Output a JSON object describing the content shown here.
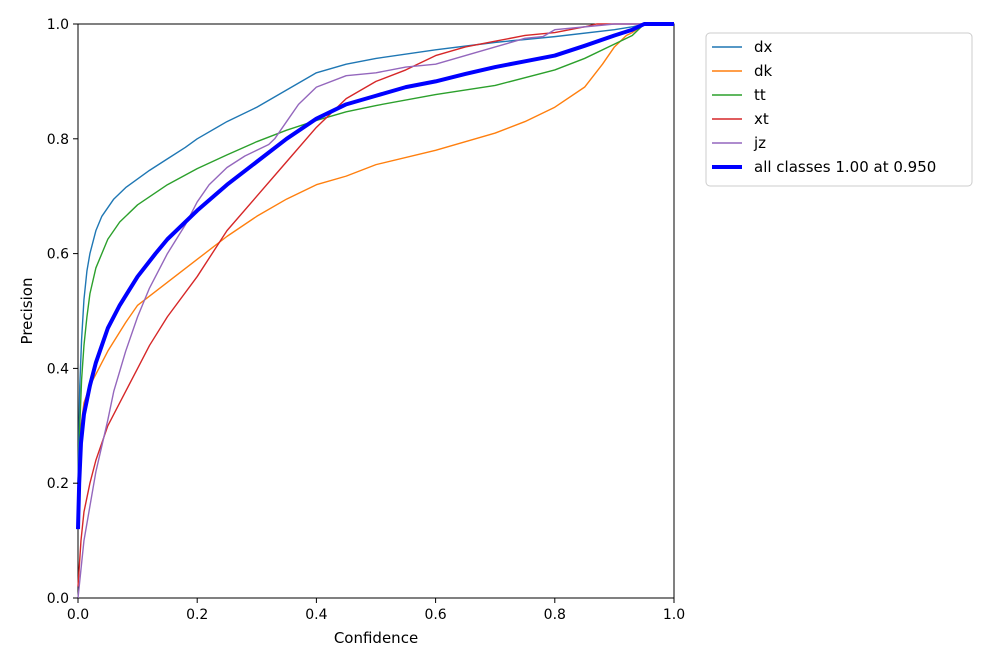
{
  "chart_data": {
    "type": "line",
    "title": "",
    "xlabel": "Confidence",
    "ylabel": "Precision",
    "xlim": [
      0,
      1
    ],
    "ylim": [
      0,
      1
    ],
    "xticks": [
      "0.0",
      "0.2",
      "0.4",
      "0.6",
      "0.8",
      "1.0"
    ],
    "yticks": [
      "0.0",
      "0.2",
      "0.4",
      "0.6",
      "0.8",
      "1.0"
    ],
    "grid": false,
    "legend_position": "outside-top-right",
    "series": [
      {
        "name": "dx",
        "color": "#1f77b4",
        "width": "thin",
        "x": [
          0.0,
          0.003,
          0.006,
          0.01,
          0.015,
          0.02,
          0.03,
          0.04,
          0.06,
          0.08,
          0.1,
          0.12,
          0.15,
          0.18,
          0.2,
          0.25,
          0.3,
          0.35,
          0.4,
          0.45,
          0.5,
          0.6,
          0.7,
          0.8,
          0.9,
          0.93,
          0.95,
          1.0
        ],
        "y": [
          0.2,
          0.37,
          0.45,
          0.52,
          0.57,
          0.6,
          0.64,
          0.665,
          0.695,
          0.715,
          0.73,
          0.745,
          0.765,
          0.785,
          0.8,
          0.83,
          0.855,
          0.885,
          0.915,
          0.93,
          0.94,
          0.955,
          0.968,
          0.978,
          0.99,
          0.995,
          1.0,
          1.0
        ]
      },
      {
        "name": "dk",
        "color": "#ff7f0e",
        "width": "thin",
        "x": [
          0.0,
          0.005,
          0.01,
          0.02,
          0.03,
          0.05,
          0.08,
          0.1,
          0.15,
          0.2,
          0.25,
          0.3,
          0.35,
          0.4,
          0.45,
          0.5,
          0.6,
          0.7,
          0.75,
          0.8,
          0.85,
          0.88,
          0.9,
          0.92,
          0.93,
          0.95,
          1.0
        ],
        "y": [
          0.15,
          0.3,
          0.34,
          0.37,
          0.39,
          0.43,
          0.48,
          0.51,
          0.55,
          0.59,
          0.63,
          0.665,
          0.695,
          0.72,
          0.735,
          0.755,
          0.78,
          0.81,
          0.83,
          0.855,
          0.89,
          0.93,
          0.96,
          0.98,
          0.985,
          1.0,
          1.0
        ]
      },
      {
        "name": "tt",
        "color": "#2ca02c",
        "width": "thin",
        "x": [
          0.0,
          0.003,
          0.006,
          0.01,
          0.015,
          0.02,
          0.03,
          0.05,
          0.07,
          0.1,
          0.15,
          0.2,
          0.25,
          0.3,
          0.35,
          0.4,
          0.45,
          0.5,
          0.6,
          0.7,
          0.8,
          0.85,
          0.9,
          0.93,
          0.95,
          1.0
        ],
        "y": [
          0.15,
          0.3,
          0.38,
          0.44,
          0.49,
          0.53,
          0.575,
          0.625,
          0.655,
          0.685,
          0.72,
          0.748,
          0.772,
          0.795,
          0.815,
          0.832,
          0.847,
          0.858,
          0.877,
          0.893,
          0.92,
          0.94,
          0.965,
          0.98,
          1.0,
          1.0
        ]
      },
      {
        "name": "xt",
        "color": "#d62728",
        "width": "thin",
        "x": [
          0.0,
          0.005,
          0.01,
          0.02,
          0.03,
          0.05,
          0.07,
          0.1,
          0.12,
          0.15,
          0.2,
          0.25,
          0.3,
          0.35,
          0.4,
          0.45,
          0.5,
          0.55,
          0.6,
          0.65,
          0.7,
          0.75,
          0.8,
          0.85,
          0.87,
          0.9,
          1.0
        ],
        "y": [
          0.02,
          0.1,
          0.15,
          0.2,
          0.24,
          0.3,
          0.34,
          0.4,
          0.44,
          0.49,
          0.56,
          0.64,
          0.7,
          0.76,
          0.82,
          0.87,
          0.9,
          0.92,
          0.945,
          0.96,
          0.97,
          0.98,
          0.985,
          0.995,
          1.0,
          1.0,
          1.0
        ]
      },
      {
        "name": "jz",
        "color": "#9467bd",
        "width": "thin",
        "x": [
          0.0,
          0.005,
          0.01,
          0.02,
          0.03,
          0.05,
          0.06,
          0.08,
          0.1,
          0.12,
          0.15,
          0.18,
          0.2,
          0.22,
          0.25,
          0.28,
          0.3,
          0.32,
          0.33,
          0.35,
          0.37,
          0.4,
          0.45,
          0.5,
          0.55,
          0.6,
          0.65,
          0.7,
          0.75,
          0.78,
          0.8,
          0.85,
          0.9,
          0.95,
          1.0
        ],
        "y": [
          0.0,
          0.05,
          0.1,
          0.16,
          0.22,
          0.31,
          0.36,
          0.43,
          0.49,
          0.54,
          0.6,
          0.65,
          0.69,
          0.72,
          0.75,
          0.77,
          0.78,
          0.79,
          0.8,
          0.83,
          0.86,
          0.89,
          0.91,
          0.915,
          0.925,
          0.93,
          0.945,
          0.96,
          0.975,
          0.978,
          0.99,
          0.995,
          1.0,
          1.0,
          1.0
        ]
      },
      {
        "name": "all classes 1.00 at 0.950",
        "color": "#0000ff",
        "width": "thick",
        "x": [
          0.0,
          0.002,
          0.005,
          0.01,
          0.02,
          0.03,
          0.05,
          0.07,
          0.1,
          0.13,
          0.15,
          0.2,
          0.25,
          0.3,
          0.35,
          0.4,
          0.45,
          0.5,
          0.55,
          0.6,
          0.65,
          0.7,
          0.75,
          0.8,
          0.85,
          0.9,
          0.93,
          0.95,
          1.0
        ],
        "y": [
          0.12,
          0.2,
          0.27,
          0.32,
          0.37,
          0.41,
          0.47,
          0.51,
          0.56,
          0.6,
          0.625,
          0.675,
          0.72,
          0.76,
          0.8,
          0.835,
          0.86,
          0.875,
          0.89,
          0.9,
          0.913,
          0.925,
          0.935,
          0.945,
          0.962,
          0.98,
          0.99,
          1.0,
          1.0
        ]
      }
    ]
  }
}
